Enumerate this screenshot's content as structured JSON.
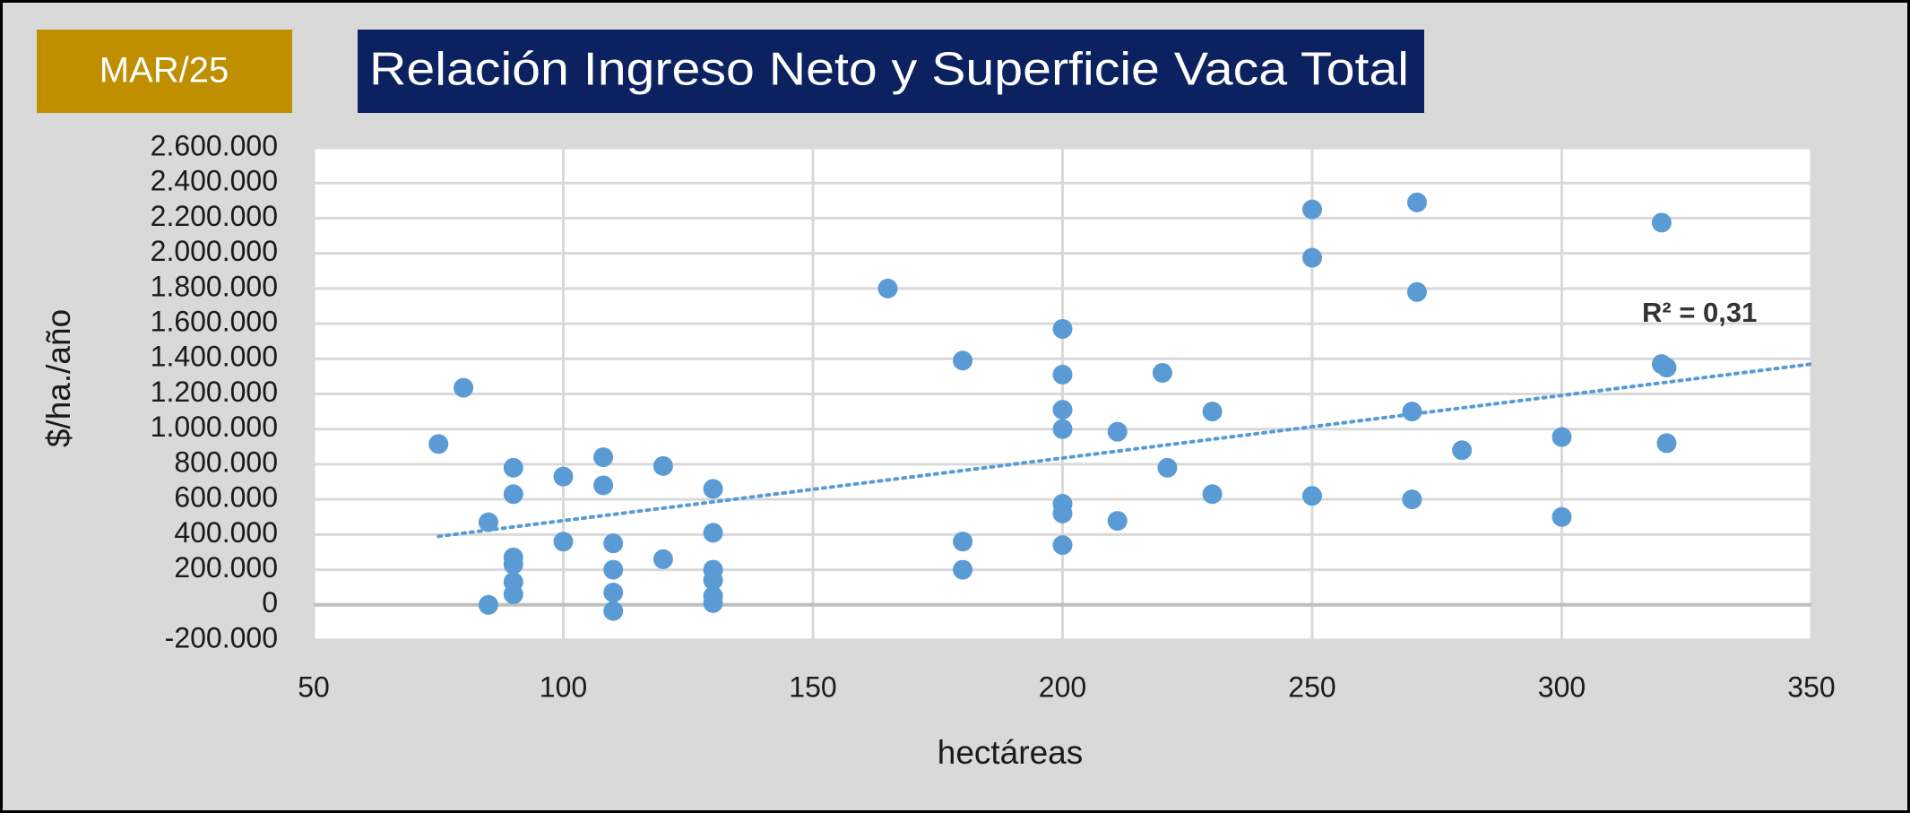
{
  "chart_data": {
    "type": "scatter",
    "title": "Relación Ingreso Neto y Superficie Vaca Total",
    "date_label": "MAR/25",
    "x_label": "hectáreas",
    "y_label": "$/ha./año",
    "color": "#5b9bd5",
    "grid": true,
    "x": [
      75,
      80,
      85,
      85,
      90,
      90,
      90,
      90,
      90,
      90,
      100,
      100,
      108,
      108,
      110,
      110,
      110,
      110,
      120,
      120,
      130,
      130,
      130,
      130,
      130,
      130,
      165,
      180,
      180,
      180,
      200,
      200,
      200,
      200,
      200,
      200,
      200,
      211,
      211,
      220,
      221,
      230,
      230,
      250,
      250,
      250,
      270,
      270,
      271,
      271,
      280,
      300,
      300,
      320,
      320,
      321,
      321
    ],
    "values": [
      915000,
      1235000,
      470000,
      0,
      780000,
      630000,
      270000,
      230000,
      130000,
      60000,
      730000,
      360000,
      840000,
      680000,
      350000,
      200000,
      70000,
      -35000,
      790000,
      260000,
      660000,
      410000,
      200000,
      140000,
      50000,
      10000,
      1800000,
      1390000,
      360000,
      200000,
      1570000,
      1310000,
      1110000,
      1000000,
      575000,
      520000,
      340000,
      985000,
      478000,
      1320000,
      780000,
      1100000,
      630000,
      2250000,
      1975000,
      620000,
      1100000,
      600000,
      2290000,
      1780000,
      880000,
      955000,
      500000,
      2175000,
      1370000,
      1350000,
      920000
    ],
    "trendline": {
      "x": [
        75,
        350
      ],
      "values": [
        390000,
        1370000
      ],
      "label": "R² = 0,31"
    },
    "xlim": [
      50,
      350
    ],
    "xticks": [
      50,
      100,
      150,
      200,
      250,
      300,
      350
    ],
    "ylim": [
      -200000,
      2600000
    ],
    "yticks": [
      {
        "value": -200000,
        "label": "-200.000"
      },
      0,
      {
        "value": 200000,
        "label": "200.000"
      },
      {
        "value": 400000,
        "label": "400.000"
      },
      {
        "value": 600000,
        "label": "600.000"
      },
      {
        "value": 800000,
        "label": "800.000"
      },
      {
        "value": 1000000,
        "label": "1.000.000"
      },
      {
        "value": 1200000,
        "label": "1.200.000"
      },
      {
        "value": 1400000,
        "label": "1.400.000"
      },
      {
        "value": 1600000,
        "label": "1.600.000"
      },
      {
        "value": 1800000,
        "label": "1.800.000"
      },
      {
        "value": 2000000,
        "label": "2.000.000"
      },
      {
        "value": 2200000,
        "label": "2.200.000"
      },
      {
        "value": 2400000,
        "label": "2.400.000"
      },
      {
        "value": 2600000,
        "label": "2.600.000"
      }
    ]
  }
}
